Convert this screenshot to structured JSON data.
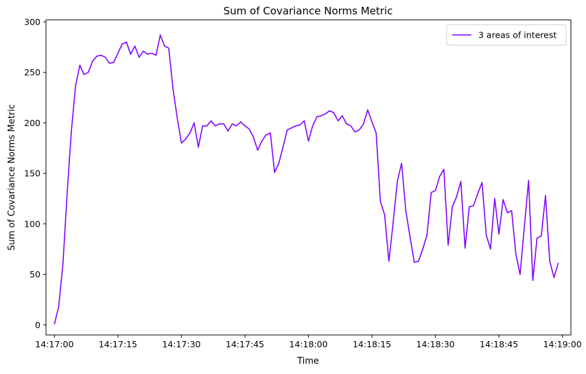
{
  "chart_data": {
    "type": "line",
    "title": "Sum of Covariance Norms Metric",
    "xlabel": "Time",
    "ylabel": "Sum of Covariance Norms Metric",
    "x_unit": "time (HH:MM:SS)",
    "xlim": [
      "14:16:58",
      "14:19:02"
    ],
    "ylim": [
      -10,
      302
    ],
    "x_ticks": [
      "14:17:00",
      "14:17:15",
      "14:17:30",
      "14:17:45",
      "14:18:00",
      "14:18:15",
      "14:18:30",
      "14:18:45",
      "14:19:00"
    ],
    "y_ticks": [
      0,
      50,
      100,
      150,
      200,
      250,
      300
    ],
    "grid": false,
    "legend_position": "top-right",
    "series": [
      {
        "name": "3 areas of interest",
        "color": "#8000ff",
        "points": [
          [
            "14:17:00",
            1
          ],
          [
            "14:17:01",
            18
          ],
          [
            "14:17:02",
            60
          ],
          [
            "14:17:03",
            130
          ],
          [
            "14:17:04",
            192
          ],
          [
            "14:17:05",
            237
          ],
          [
            "14:17:06",
            257
          ],
          [
            "14:17:07",
            248
          ],
          [
            "14:17:08",
            250
          ],
          [
            "14:17:09",
            261
          ],
          [
            "14:17:10",
            266
          ],
          [
            "14:17:11",
            267
          ],
          [
            "14:17:12",
            265
          ],
          [
            "14:17:13",
            259
          ],
          [
            "14:17:14",
            260
          ],
          [
            "14:17:15",
            269
          ],
          [
            "14:17:16",
            278
          ],
          [
            "14:17:17",
            280
          ],
          [
            "14:17:18",
            268
          ],
          [
            "14:17:19",
            276
          ],
          [
            "14:17:20",
            265
          ],
          [
            "14:17:21",
            271
          ],
          [
            "14:17:22",
            268
          ],
          [
            "14:17:23",
            269
          ],
          [
            "14:17:24",
            267
          ],
          [
            "14:17:25",
            287
          ],
          [
            "14:17:26",
            276
          ],
          [
            "14:17:27",
            274
          ],
          [
            "14:17:28",
            234
          ],
          [
            "14:17:29",
            205
          ],
          [
            "14:17:30",
            180
          ],
          [
            "14:17:31",
            184
          ],
          [
            "14:17:32",
            190
          ],
          [
            "14:17:33",
            200
          ],
          [
            "14:17:34",
            176
          ],
          [
            "14:17:35",
            197
          ],
          [
            "14:17:36",
            197
          ],
          [
            "14:17:37",
            202
          ],
          [
            "14:17:38",
            197
          ],
          [
            "14:17:39",
            199
          ],
          [
            "14:17:40",
            199
          ],
          [
            "14:17:41",
            192
          ],
          [
            "14:17:42",
            199
          ],
          [
            "14:17:43",
            197
          ],
          [
            "14:17:44",
            201
          ],
          [
            "14:17:45",
            197
          ],
          [
            "14:17:46",
            194
          ],
          [
            "14:17:47",
            186
          ],
          [
            "14:17:48",
            173
          ],
          [
            "14:17:49",
            182
          ],
          [
            "14:17:50",
            188
          ],
          [
            "14:17:51",
            190
          ],
          [
            "14:17:52",
            151
          ],
          [
            "14:17:53",
            160
          ],
          [
            "14:17:54",
            176
          ],
          [
            "14:17:55",
            193
          ],
          [
            "14:17:56",
            195
          ],
          [
            "14:17:57",
            197
          ],
          [
            "14:17:58",
            198
          ],
          [
            "14:17:59",
            202
          ],
          [
            "14:18:00",
            182
          ],
          [
            "14:18:01",
            197
          ],
          [
            "14:18:02",
            206
          ],
          [
            "14:18:03",
            207
          ],
          [
            "14:18:04",
            209
          ],
          [
            "14:18:05",
            212
          ],
          [
            "14:18:06",
            210
          ],
          [
            "14:18:07",
            202
          ],
          [
            "14:18:08",
            207
          ],
          [
            "14:18:09",
            199
          ],
          [
            "14:18:10",
            197
          ],
          [
            "14:18:11",
            191
          ],
          [
            "14:18:12",
            193
          ],
          [
            "14:18:13",
            199
          ],
          [
            "14:18:14",
            213
          ],
          [
            "14:18:15",
            201
          ],
          [
            "14:18:16",
            190
          ],
          [
            "14:18:17",
            122
          ],
          [
            "14:18:18",
            109
          ],
          [
            "14:18:19",
            63
          ],
          [
            "14:18:20",
            101
          ],
          [
            "14:18:21",
            142
          ],
          [
            "14:18:22",
            160
          ],
          [
            "14:18:23",
            113
          ],
          [
            "14:18:24",
            87
          ],
          [
            "14:18:25",
            62
          ],
          [
            "14:18:26",
            63
          ],
          [
            "14:18:27",
            75
          ],
          [
            "14:18:28",
            89
          ],
          [
            "14:18:29",
            131
          ],
          [
            "14:18:30",
            133
          ],
          [
            "14:18:31",
            147
          ],
          [
            "14:18:32",
            154
          ],
          [
            "14:18:33",
            79
          ],
          [
            "14:18:34",
            117
          ],
          [
            "14:18:35",
            127
          ],
          [
            "14:18:36",
            142
          ],
          [
            "14:18:37",
            76
          ],
          [
            "14:18:38",
            117
          ],
          [
            "14:18:39",
            118
          ],
          [
            "14:18:40",
            130
          ],
          [
            "14:18:41",
            141
          ],
          [
            "14:18:42",
            89
          ],
          [
            "14:18:43",
            75
          ],
          [
            "14:18:44",
            125
          ],
          [
            "14:18:45",
            90
          ],
          [
            "14:18:46",
            124
          ],
          [
            "14:18:47",
            111
          ],
          [
            "14:18:48",
            113
          ],
          [
            "14:18:49",
            70
          ],
          [
            "14:18:50",
            50
          ],
          [
            "14:18:51",
            97
          ],
          [
            "14:18:52",
            143
          ],
          [
            "14:18:53",
            44
          ],
          [
            "14:18:54",
            86
          ],
          [
            "14:18:55",
            88
          ],
          [
            "14:18:56",
            128
          ],
          [
            "14:18:57",
            63
          ],
          [
            "14:18:58",
            47
          ],
          [
            "14:18:59",
            61
          ]
        ]
      }
    ]
  }
}
